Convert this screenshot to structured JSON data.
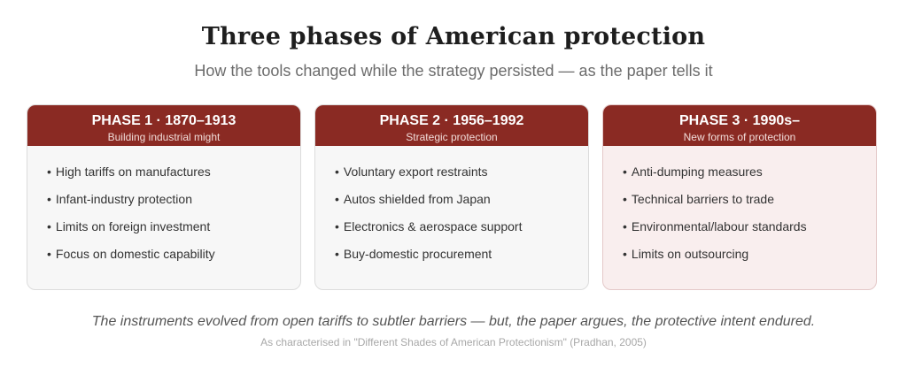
{
  "title": "Three phases of American protection",
  "subtitle": "How the tools changed while the strategy persisted — as the paper tells it",
  "phases": [
    {
      "heading": "PHASE 1 · 1870–1913",
      "caption": "Building industrial might",
      "items": [
        "High tariffs on manufactures",
        "Infant-industry protection",
        "Limits on foreign investment",
        "Focus on domestic capability"
      ]
    },
    {
      "heading": "PHASE 2 · 1956–1992",
      "caption": "Strategic protection",
      "items": [
        "Voluntary export restraints",
        "Autos shielded from Japan",
        "Electronics & aerospace support",
        "Buy-domestic procurement"
      ]
    },
    {
      "heading": "PHASE 3 · 1990s–",
      "caption": "New forms of protection",
      "items": [
        "Anti-dumping measures",
        "Technical barriers to trade",
        "Environmental/labour standards",
        "Limits on outsourcing"
      ]
    }
  ],
  "footer": {
    "quote": "The instruments evolved from open tariffs to subtler barriers — but, the paper argues, the protective intent endured.",
    "source": "As characterised in \"Different Shades of American Protectionism\" (Pradhan, 2005)"
  },
  "colors": {
    "header_bg": "#8a2a23",
    "card_bg": "#f7f7f7",
    "highlight_card_bg": "#f9eeee"
  }
}
